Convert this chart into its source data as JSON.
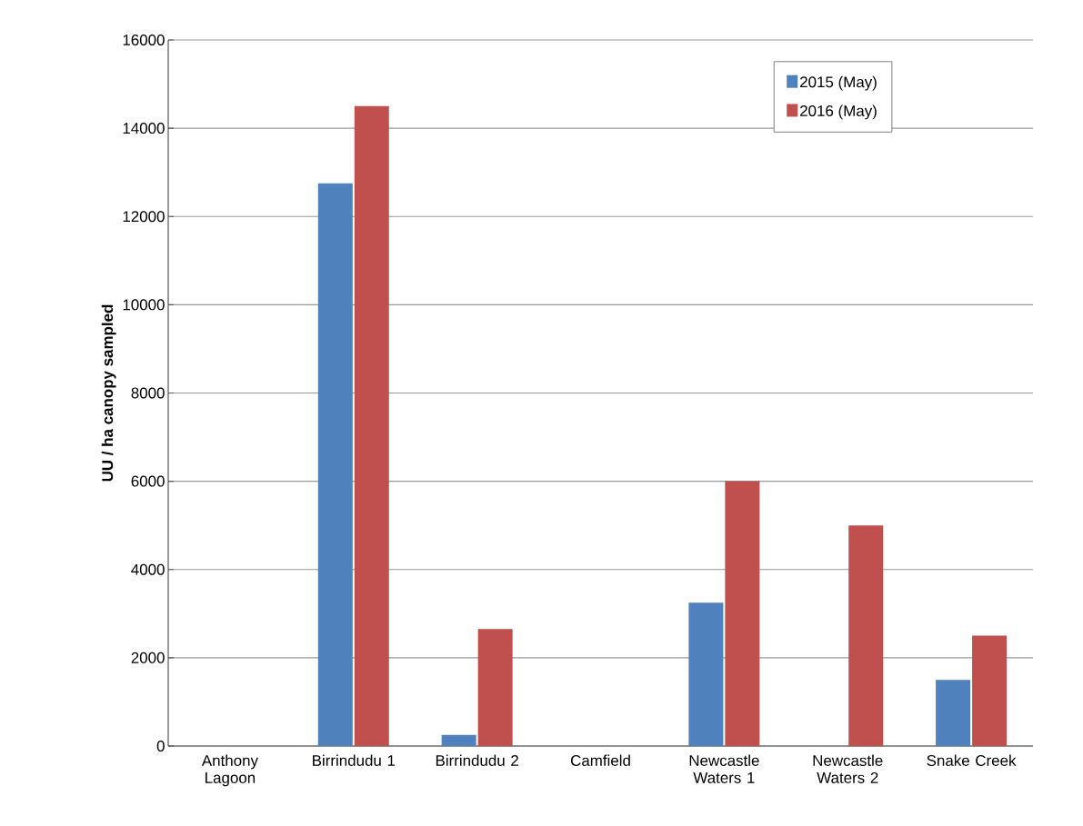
{
  "chart_data": {
    "type": "bar",
    "ylabel": "UU / ha canopy sampled",
    "categories": [
      "Anthony Lagoon",
      "Birrindudu 1",
      "Birrindudu 2",
      "Camfield",
      "Newcastle Waters 1",
      "Newcastle Waters 2",
      "Snake Creek"
    ],
    "series": [
      {
        "name": "2015 (May)",
        "color": "#4f81bd",
        "values": [
          0,
          12750,
          250,
          0,
          3250,
          0,
          1500
        ]
      },
      {
        "name": "2016 (May)",
        "color": "#c0504d",
        "values": [
          0,
          14500,
          2650,
          0,
          6000,
          5000,
          2500
        ]
      }
    ],
    "ylim": [
      0,
      16000
    ],
    "yticks": [
      0,
      2000,
      4000,
      6000,
      8000,
      10000,
      12000,
      14000,
      16000
    ],
    "grid": "y",
    "legend": "top right"
  }
}
